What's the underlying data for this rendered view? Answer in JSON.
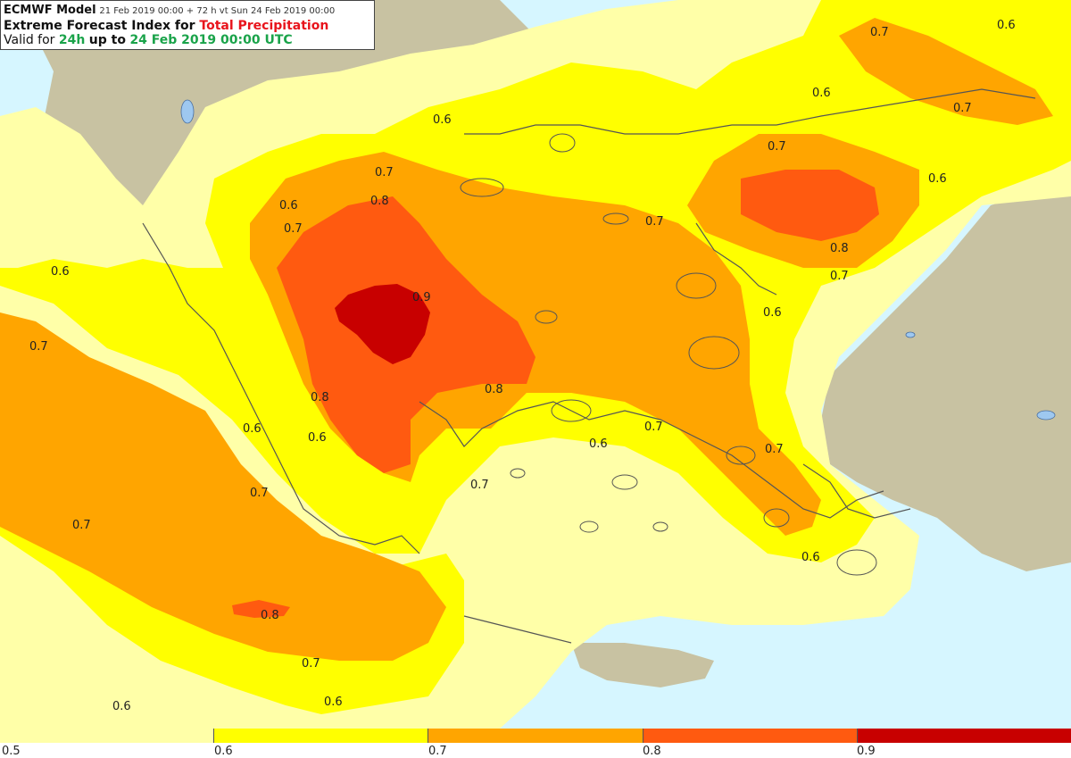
{
  "header": {
    "model": "ECMWF Model",
    "run_info": "21 Feb 2019 00:00 + 72 h vt Sun 24 Feb 2019 00:00",
    "title_prefix": "Extreme Forecast Index for",
    "title_variable": "Total Precipitation",
    "valid_prefix": "Valid for",
    "valid_period": "24h",
    "valid_mid": "up to",
    "valid_time": "24 Feb 2019 00:00 UTC"
  },
  "legend": {
    "ticks": [
      "0.5",
      "0.6",
      "0.7",
      "0.8",
      "0.9"
    ],
    "colors": [
      "#ffffa8",
      "#ffff00",
      "#ffa500",
      "#ff5a10",
      "#c80000"
    ]
  },
  "colors": {
    "sea": "#d6f6ff",
    "land_outside": "#c8c2a2",
    "efi_05": "#ffffa8",
    "efi_06": "#ffff00",
    "efi_07": "#ffa500",
    "efi_08": "#ff5a10",
    "efi_09": "#c80000",
    "coastline": "#555555"
  },
  "contour_labels": [
    {
      "text": "0.6"
    },
    {
      "text": "0.7"
    },
    {
      "text": "0.6"
    },
    {
      "text": "0.7"
    },
    {
      "text": "0.7"
    },
    {
      "text": "0.6"
    },
    {
      "text": "0.7"
    },
    {
      "text": "0.6"
    },
    {
      "text": "0.6"
    },
    {
      "text": "0.7"
    },
    {
      "text": "0.8"
    },
    {
      "text": "0.6"
    },
    {
      "text": "0.7"
    },
    {
      "text": "0.8"
    },
    {
      "text": "0.7"
    },
    {
      "text": "0.9"
    },
    {
      "text": "0.6"
    },
    {
      "text": "0.7"
    },
    {
      "text": "0.8"
    },
    {
      "text": "0.8"
    },
    {
      "text": "0.6"
    },
    {
      "text": "0.6"
    },
    {
      "text": "0.7"
    },
    {
      "text": "0.6"
    },
    {
      "text": "0.7"
    },
    {
      "text": "0.7"
    },
    {
      "text": "0.7"
    },
    {
      "text": "0.7"
    },
    {
      "text": "0.6"
    },
    {
      "text": "0.8"
    },
    {
      "text": "0.7"
    },
    {
      "text": "0.6"
    },
    {
      "text": "0.6"
    }
  ]
}
